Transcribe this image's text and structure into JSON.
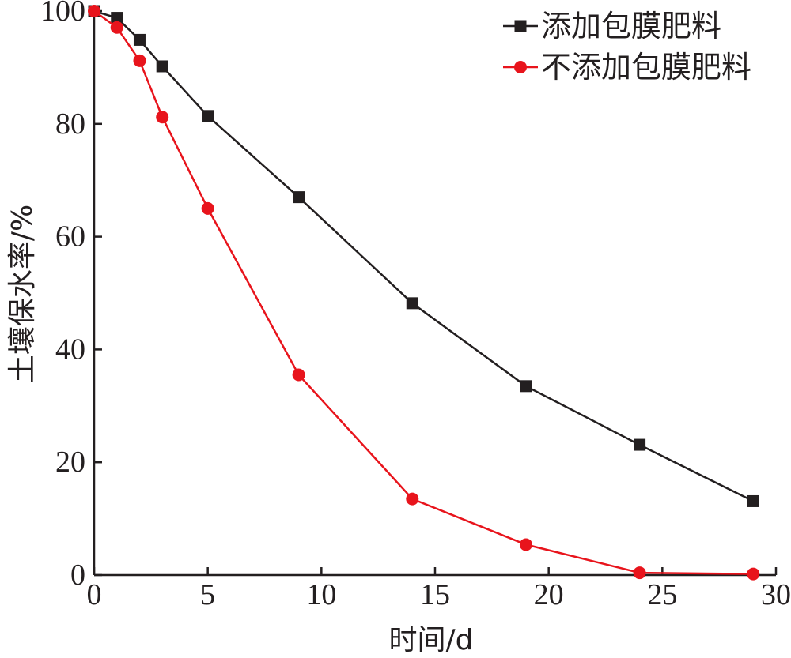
{
  "chart_data": {
    "type": "line",
    "xlabel": "时间/d",
    "ylabel": "土壤保水率/%",
    "xlim": [
      0,
      30
    ],
    "ylim": [
      0,
      100
    ],
    "xticks": [
      0,
      5,
      10,
      15,
      20,
      25,
      30
    ],
    "yticks": [
      0,
      20,
      40,
      60,
      80,
      100
    ],
    "grid": false,
    "legend_position": "top-right",
    "series": [
      {
        "name": "添加包膜肥料",
        "marker": "square",
        "color": "#231f20",
        "x": [
          0,
          1,
          2,
          3,
          5,
          9,
          14,
          19,
          24,
          29
        ],
        "y": [
          100,
          98.8,
          94.9,
          90.2,
          81.4,
          67.0,
          48.2,
          33.5,
          23.1,
          13.1
        ]
      },
      {
        "name": "不添加包膜肥料",
        "marker": "circle",
        "color": "#e8141c",
        "x": [
          0,
          1,
          2,
          3,
          5,
          9,
          14,
          19,
          24,
          29
        ],
        "y": [
          100,
          97.1,
          91.2,
          81.2,
          65.0,
          35.5,
          13.5,
          5.4,
          0.4,
          0.2
        ]
      }
    ]
  }
}
